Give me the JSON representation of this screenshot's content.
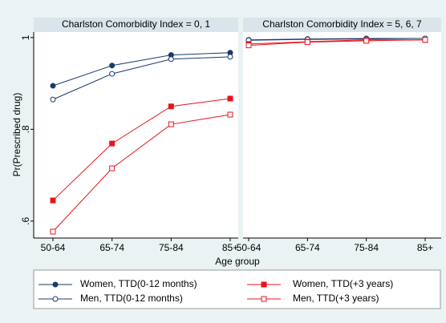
{
  "chart_data": [
    {
      "type": "line",
      "title": "Charlston Comorbidity Index = 0, 1",
      "x_label": "Age group",
      "y_label": "Pr(Prescribed drug)",
      "categories": [
        "50-64",
        "65-74",
        "75-84",
        "85+"
      ],
      "ylim": [
        0.563,
        1.012
      ],
      "yticks": [
        {
          "value": 0.6,
          "label": ".6"
        },
        {
          "value": 0.8,
          "label": ".8"
        },
        1
      ],
      "series": [
        {
          "name": "Women, TTD(0-12 months)",
          "color": "#1a3a6b",
          "marker": "circle",
          "values": [
            0.895,
            0.939,
            0.962,
            0.967
          ]
        },
        {
          "name": "Men, TTD(0-12 months)",
          "color": "#1a3a6b",
          "marker": "circle-open",
          "values": [
            0.865,
            0.921,
            0.953,
            0.958
          ]
        },
        {
          "name": "Women, TTD(+3 years)",
          "color": "#e8141c",
          "marker": "square",
          "values": [
            0.645,
            0.769,
            0.85,
            0.867
          ]
        },
        {
          "name": "Men, TTD(+3 years)",
          "color": "#e8141c",
          "marker": "square-open",
          "values": [
            0.577,
            0.715,
            0.811,
            0.832
          ]
        }
      ]
    },
    {
      "type": "line",
      "title": "Charlston Comorbidity Index = 5, 6, 7",
      "categories": [
        "50-64",
        "65-74",
        "75-84",
        "85+"
      ],
      "ylim": [
        0.563,
        1.012
      ],
      "series": [
        {
          "name": "Women, TTD(0-12 months)",
          "color": "#1a3a6b",
          "marker": "circle",
          "values": [
            0.995,
            0.997,
            0.998,
            0.998
          ]
        },
        {
          "name": "Men, TTD(0-12 months)",
          "color": "#1a3a6b",
          "marker": "circle-open",
          "values": [
            0.994,
            0.996,
            0.997,
            0.998
          ]
        },
        {
          "name": "Women, TTD(+3 years)",
          "color": "#e8141c",
          "marker": "square",
          "values": [
            0.986,
            0.991,
            0.995,
            0.995
          ]
        },
        {
          "name": "Men, TTD(+3 years)",
          "color": "#e8141c",
          "marker": "square-open",
          "values": [
            0.983,
            0.99,
            0.993,
            0.995
          ]
        }
      ]
    }
  ]
}
